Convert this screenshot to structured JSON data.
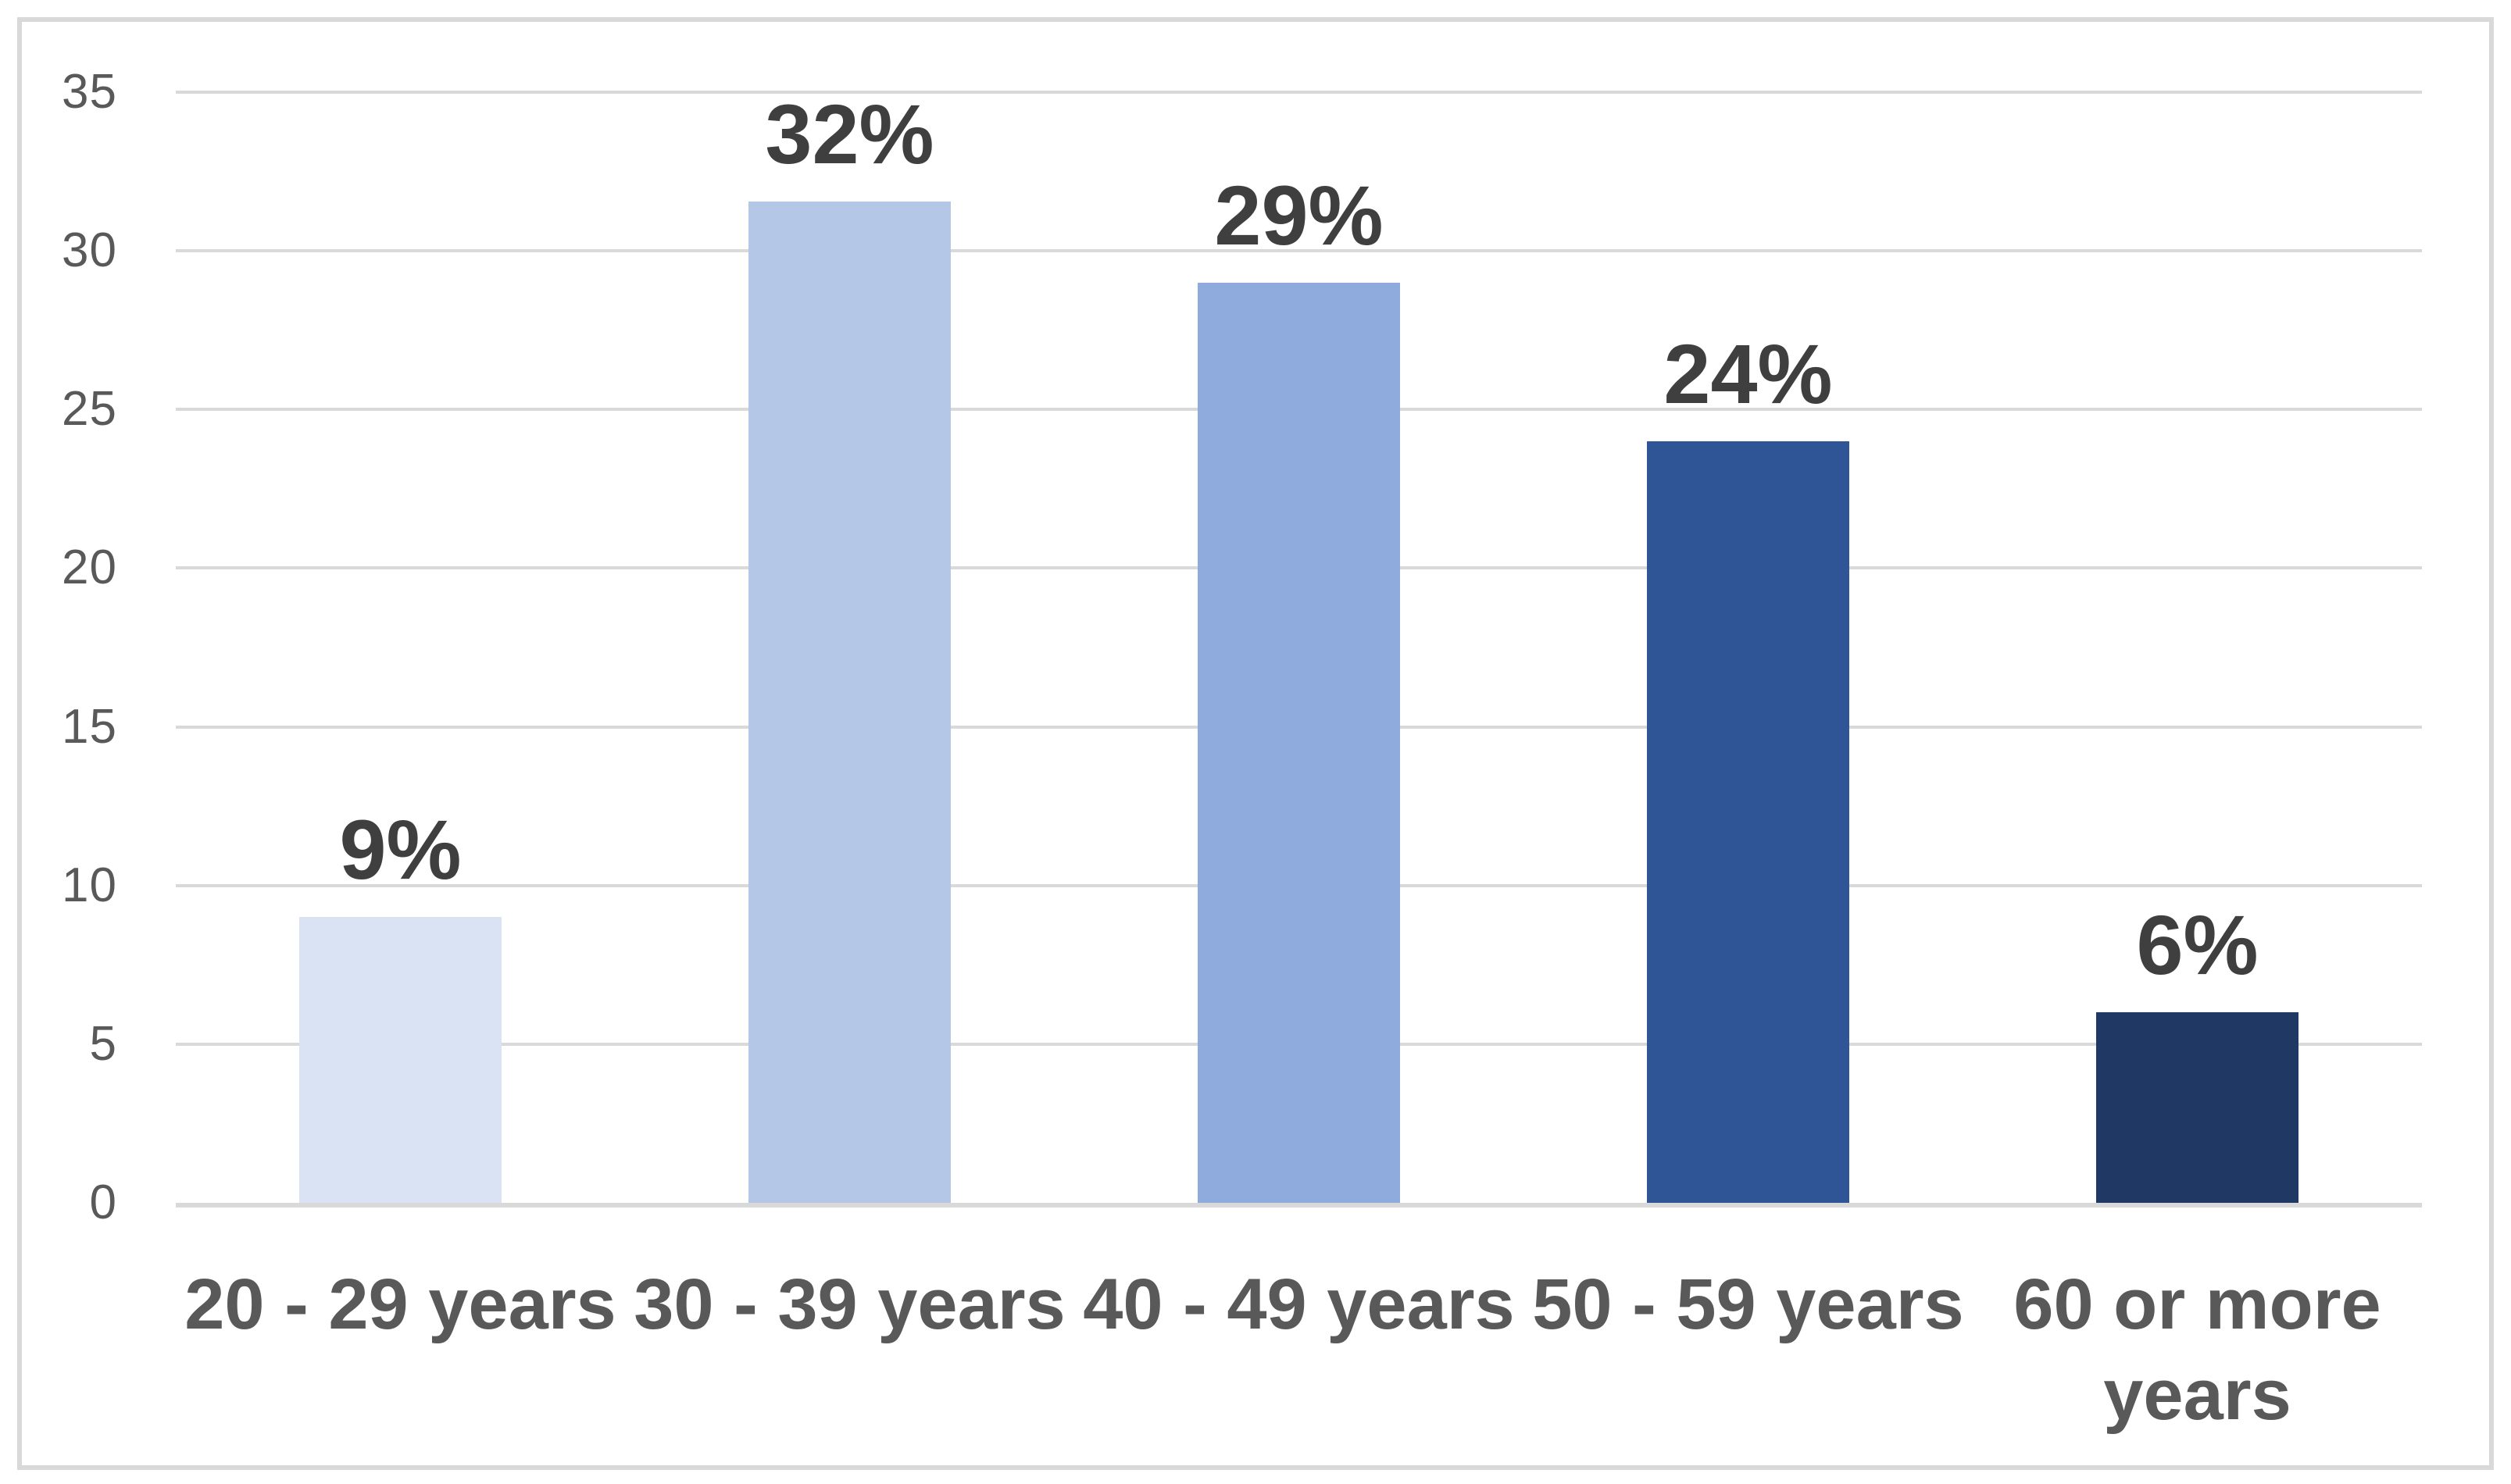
{
  "chart_data": {
    "type": "bar",
    "title": "",
    "categories": [
      "20 - 29 years",
      "30 - 39 years",
      "40 - 49 years",
      "50 - 59 years",
      "60 or more years"
    ],
    "values": [
      9,
      32,
      29,
      24,
      6
    ],
    "data_labels": [
      "9%",
      "32%",
      "29%",
      "24%",
      "6%"
    ],
    "tick_display": [
      "20 - 29 years",
      "30 - 39 years",
      "40 - 49 years",
      "50 - 59 years",
      "60 or more\nyears"
    ],
    "bar_colors": [
      "#DAE3F3",
      "#B4C7E7",
      "#8FAADC",
      "#2F5597",
      "#1F3864"
    ],
    "xlabel": "",
    "ylabel": "",
    "ylim": [
      0,
      35
    ],
    "yticks": [
      0,
      5,
      10,
      15,
      20,
      25,
      30,
      35
    ],
    "grid": true,
    "legend": "none",
    "colors": {
      "gridline": "#D9D9D9",
      "baseline": "#D9D9D9",
      "frame_border": "#D9D9D9",
      "axis_text": "#595959",
      "data_label_text": "#3F3F3F",
      "background": "#FFFFFF"
    }
  }
}
